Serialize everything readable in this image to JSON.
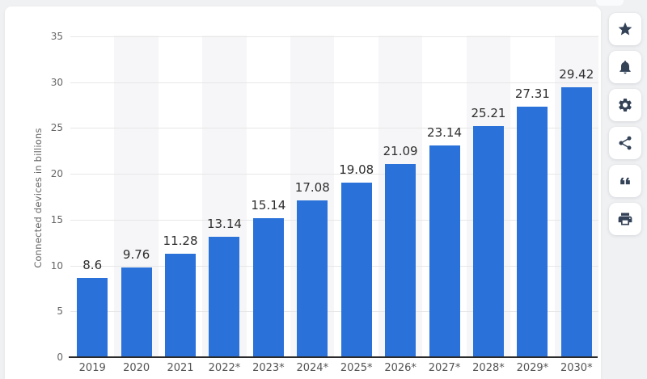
{
  "chart_data": {
    "type": "bar",
    "title": "",
    "categories": [
      "2019",
      "2020",
      "2021",
      "2022*",
      "2023*",
      "2024*",
      "2025*",
      "2026*",
      "2027*",
      "2028*",
      "2029*",
      "2030*"
    ],
    "values": [
      8.6,
      9.76,
      11.28,
      13.14,
      15.14,
      17.08,
      19.08,
      21.09,
      23.14,
      25.21,
      27.31,
      29.42
    ],
    "value_labels": [
      "8.6",
      "9.76",
      "11.28",
      "13.14",
      "15.14",
      "17.08",
      "19.08",
      "21.09",
      "23.14",
      "25.21",
      "27.31",
      "29.42"
    ],
    "xlabel": "",
    "ylabel": "Connected devices in billions",
    "ylim": [
      0,
      35
    ],
    "yticks": [
      0,
      5,
      10,
      15,
      20,
      25,
      30,
      35
    ],
    "grid": true,
    "plot_bands": "alternating-category-columns",
    "legend_position": "none",
    "colors": {
      "bar": "#2a72d9",
      "grid": "#e7e7e7",
      "axis": "#2b2b2b",
      "band": "#f6f6f8",
      "tick_text": "#666666",
      "xtick_text": "#555555",
      "value_text": "#2e2e2e"
    }
  },
  "toolbar": {
    "icon_color": "#334257",
    "buttons": [
      {
        "name": "favorite",
        "icon": "star-icon"
      },
      {
        "name": "notifications",
        "icon": "bell-icon"
      },
      {
        "name": "settings",
        "icon": "gear-icon"
      },
      {
        "name": "share",
        "icon": "share-icon"
      },
      {
        "name": "cite",
        "icon": "quote-icon"
      },
      {
        "name": "print",
        "icon": "printer-icon"
      }
    ]
  }
}
